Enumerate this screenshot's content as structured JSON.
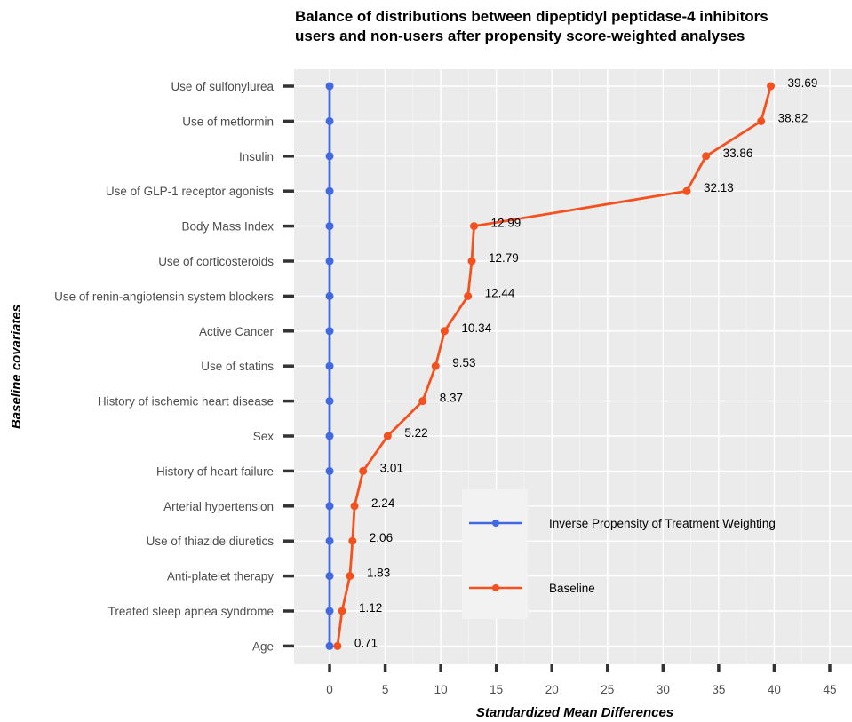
{
  "chart_data": {
    "type": "line",
    "title_line1": "Balance of distributions between dipeptidyl peptidase-4 inhibitors",
    "title_line2": "users and non-users after propensity score-weighted analyses",
    "xlabel": "Standardized Mean Differences",
    "ylabel": "Baseline covariates",
    "xlim": [
      -3.2,
      47
    ],
    "xticks": [
      0,
      5,
      10,
      15,
      20,
      25,
      30,
      35,
      40,
      45
    ],
    "grid": true,
    "legend_position": "bottom-center",
    "categories": [
      "Use of sulfonylurea",
      "Use of metformin",
      "Insulin",
      "Use of GLP-1 receptor agonists",
      "Body Mass Index",
      "Use of corticosteroids",
      "Use of renin-angiotensin system blockers",
      "Active Cancer",
      "Use of statins",
      "History of ischemic heart disease",
      "Sex",
      "History of heart failure",
      "Arterial hypertension",
      "Use of thiazide diuretics",
      "Anti-platelet therapy",
      "Treated sleep apnea syndrome",
      "Age"
    ],
    "series": [
      {
        "name": "Inverse Propensity of Treatment Weighting",
        "color": "#4169e1",
        "values": [
          0,
          0,
          0,
          0,
          0,
          0,
          0,
          0,
          0,
          0,
          0,
          0,
          0,
          0,
          0,
          0,
          0
        ],
        "show_labels": false
      },
      {
        "name": "Baseline",
        "color": "#f4511e",
        "values": [
          39.69,
          38.82,
          33.86,
          32.13,
          12.99,
          12.79,
          12.44,
          10.34,
          9.53,
          8.37,
          5.22,
          3.01,
          2.24,
          2.06,
          1.83,
          1.12,
          0.71
        ],
        "labels": [
          "39.69",
          "38.82",
          "33.86",
          "32.13",
          "12.99",
          "12.79",
          "12.44",
          "10.34",
          "9.53",
          "8.37",
          "5.22",
          "3.01",
          "2.24",
          "2.06",
          "1.83",
          "1.12",
          "0.71"
        ],
        "show_labels": true
      }
    ]
  }
}
